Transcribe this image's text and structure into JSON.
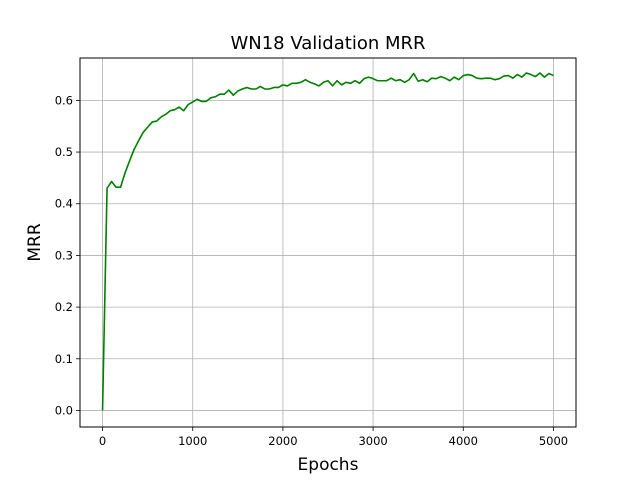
{
  "chart_data": {
    "type": "line",
    "title": "WN18 Validation MRR",
    "xlabel": "Epochs",
    "ylabel": "MRR",
    "xlim": [
      -250,
      5250
    ],
    "ylim": [
      -0.032,
      0.682
    ],
    "xticks": [
      0,
      1000,
      2000,
      3000,
      4000,
      5000
    ],
    "yticks": [
      0.0,
      0.1,
      0.2,
      0.3,
      0.4,
      0.5,
      0.6
    ],
    "xtick_labels": [
      "0",
      "1000",
      "2000",
      "3000",
      "4000",
      "5000"
    ],
    "ytick_labels": [
      "0.0",
      "0.1",
      "0.2",
      "0.3",
      "0.4",
      "0.5",
      "0.6"
    ],
    "grid": true,
    "legend": false,
    "series": [
      {
        "color": "#008000",
        "x": [
          0,
          50,
          100,
          150,
          200,
          250,
          300,
          350,
          400,
          450,
          500,
          550,
          600,
          650,
          700,
          750,
          800,
          850,
          900,
          950,
          1000,
          1050,
          1100,
          1150,
          1200,
          1250,
          1300,
          1350,
          1400,
          1450,
          1500,
          1550,
          1600,
          1650,
          1700,
          1750,
          1800,
          1850,
          1900,
          1950,
          2000,
          2050,
          2100,
          2150,
          2200,
          2250,
          2300,
          2350,
          2400,
          2450,
          2500,
          2550,
          2600,
          2650,
          2700,
          2750,
          2800,
          2850,
          2900,
          2950,
          3000,
          3050,
          3100,
          3150,
          3200,
          3250,
          3300,
          3350,
          3400,
          3450,
          3500,
          3550,
          3600,
          3650,
          3700,
          3750,
          3800,
          3850,
          3900,
          3950,
          4000,
          4050,
          4100,
          4150,
          4200,
          4250,
          4300,
          4350,
          4400,
          4450,
          4500,
          4550,
          4600,
          4650,
          4700,
          4750,
          4800,
          4850,
          4900,
          4950,
          5000
        ],
        "y": [
          0.0,
          0.43,
          0.443,
          0.432,
          0.432,
          0.46,
          0.483,
          0.505,
          0.522,
          0.538,
          0.548,
          0.558,
          0.56,
          0.568,
          0.573,
          0.58,
          0.582,
          0.587,
          0.58,
          0.592,
          0.597,
          0.602,
          0.598,
          0.598,
          0.605,
          0.607,
          0.612,
          0.612,
          0.62,
          0.61,
          0.618,
          0.622,
          0.625,
          0.622,
          0.622,
          0.627,
          0.622,
          0.622,
          0.625,
          0.625,
          0.63,
          0.628,
          0.633,
          0.633,
          0.635,
          0.64,
          0.635,
          0.632,
          0.628,
          0.635,
          0.638,
          0.628,
          0.638,
          0.63,
          0.635,
          0.633,
          0.638,
          0.633,
          0.642,
          0.645,
          0.642,
          0.638,
          0.638,
          0.638,
          0.643,
          0.638,
          0.64,
          0.635,
          0.64,
          0.652,
          0.637,
          0.64,
          0.636,
          0.643,
          0.642,
          0.646,
          0.643,
          0.638,
          0.645,
          0.64,
          0.648,
          0.65,
          0.648,
          0.643,
          0.642,
          0.643,
          0.643,
          0.64,
          0.642,
          0.647,
          0.648,
          0.643,
          0.65,
          0.645,
          0.653,
          0.65,
          0.646,
          0.653,
          0.645,
          0.652,
          0.648
        ]
      }
    ]
  }
}
